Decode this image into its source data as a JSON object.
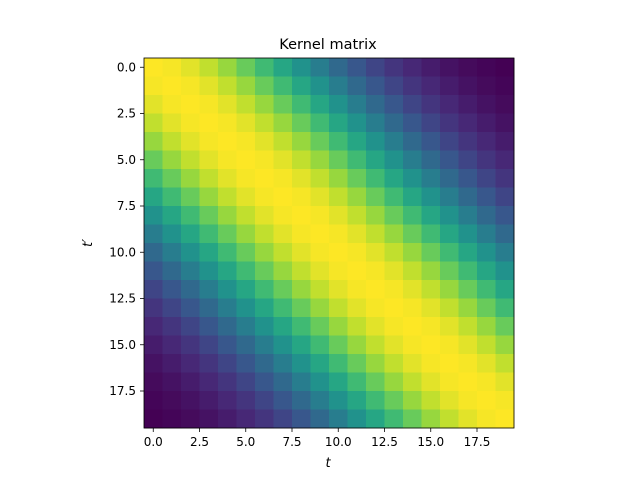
{
  "chart_data": {
    "type": "heatmap",
    "title": "Kernel matrix",
    "xlabel": "t",
    "ylabel": "t′",
    "n": 20,
    "kernel": "squared-exponential",
    "length_scale": 7,
    "colormap": "viridis",
    "x_ticks": [
      0,
      2.5,
      5,
      7.5,
      10,
      12.5,
      15,
      17.5
    ],
    "x_tick_labels": [
      "0.0",
      "2.5",
      "5.0",
      "7.5",
      "10.0",
      "12.5",
      "15.0",
      "17.5"
    ],
    "y_ticks": [
      0,
      2.5,
      5,
      7.5,
      10,
      12.5,
      15,
      17.5
    ],
    "y_tick_labels": [
      "0.0",
      "2.5",
      "5.0",
      "7.5",
      "10.0",
      "12.5",
      "15.0",
      "17.5"
    ],
    "xlim": [
      -0.5,
      19.5
    ],
    "ylim": [
      19.5,
      -0.5
    ],
    "values": [
      [
        1.0,
        0.99,
        0.96,
        0.912,
        0.849,
        0.775,
        0.692,
        0.606,
        0.521,
        0.438,
        0.36,
        0.291,
        0.23,
        0.178,
        0.135,
        0.101,
        0.073,
        0.052,
        0.037,
        0.025
      ],
      [
        0.99,
        1.0,
        0.99,
        0.96,
        0.912,
        0.849,
        0.775,
        0.692,
        0.606,
        0.521,
        0.438,
        0.36,
        0.291,
        0.23,
        0.178,
        0.135,
        0.101,
        0.073,
        0.052,
        0.037
      ],
      [
        0.96,
        0.99,
        1.0,
        0.99,
        0.96,
        0.912,
        0.849,
        0.775,
        0.692,
        0.606,
        0.521,
        0.438,
        0.36,
        0.291,
        0.23,
        0.178,
        0.135,
        0.101,
        0.073,
        0.052
      ],
      [
        0.912,
        0.96,
        0.99,
        1.0,
        0.99,
        0.96,
        0.912,
        0.849,
        0.775,
        0.692,
        0.606,
        0.521,
        0.438,
        0.36,
        0.291,
        0.23,
        0.178,
        0.135,
        0.101,
        0.073
      ],
      [
        0.849,
        0.912,
        0.96,
        0.99,
        1.0,
        0.99,
        0.96,
        0.912,
        0.849,
        0.775,
        0.692,
        0.606,
        0.521,
        0.438,
        0.36,
        0.291,
        0.23,
        0.178,
        0.135,
        0.101
      ],
      [
        0.775,
        0.849,
        0.912,
        0.96,
        0.99,
        1.0,
        0.99,
        0.96,
        0.912,
        0.849,
        0.775,
        0.692,
        0.606,
        0.521,
        0.438,
        0.36,
        0.291,
        0.23,
        0.178,
        0.135
      ],
      [
        0.692,
        0.775,
        0.849,
        0.912,
        0.96,
        0.99,
        1.0,
        0.99,
        0.96,
        0.912,
        0.849,
        0.775,
        0.692,
        0.606,
        0.521,
        0.438,
        0.36,
        0.291,
        0.23,
        0.178
      ],
      [
        0.606,
        0.692,
        0.775,
        0.849,
        0.912,
        0.96,
        0.99,
        1.0,
        0.99,
        0.96,
        0.912,
        0.849,
        0.775,
        0.692,
        0.606,
        0.521,
        0.438,
        0.36,
        0.291,
        0.23
      ],
      [
        0.521,
        0.606,
        0.692,
        0.775,
        0.849,
        0.912,
        0.96,
        0.99,
        1.0,
        0.99,
        0.96,
        0.912,
        0.849,
        0.775,
        0.692,
        0.606,
        0.521,
        0.438,
        0.36,
        0.291
      ],
      [
        0.438,
        0.521,
        0.606,
        0.692,
        0.775,
        0.849,
        0.912,
        0.96,
        0.99,
        1.0,
        0.99,
        0.96,
        0.912,
        0.849,
        0.775,
        0.692,
        0.606,
        0.521,
        0.438,
        0.36
      ],
      [
        0.36,
        0.438,
        0.521,
        0.606,
        0.692,
        0.775,
        0.849,
        0.912,
        0.96,
        0.99,
        1.0,
        0.99,
        0.96,
        0.912,
        0.849,
        0.775,
        0.692,
        0.606,
        0.521,
        0.438
      ],
      [
        0.291,
        0.36,
        0.438,
        0.521,
        0.606,
        0.692,
        0.775,
        0.849,
        0.912,
        0.96,
        0.99,
        1.0,
        0.99,
        0.96,
        0.912,
        0.849,
        0.775,
        0.692,
        0.606,
        0.521
      ],
      [
        0.23,
        0.291,
        0.36,
        0.438,
        0.521,
        0.606,
        0.692,
        0.775,
        0.849,
        0.912,
        0.96,
        0.99,
        1.0,
        0.99,
        0.96,
        0.912,
        0.849,
        0.775,
        0.692,
        0.606
      ],
      [
        0.178,
        0.23,
        0.291,
        0.36,
        0.438,
        0.521,
        0.606,
        0.692,
        0.775,
        0.849,
        0.912,
        0.96,
        0.99,
        1.0,
        0.99,
        0.96,
        0.912,
        0.849,
        0.775,
        0.692
      ],
      [
        0.135,
        0.178,
        0.23,
        0.291,
        0.36,
        0.438,
        0.521,
        0.606,
        0.692,
        0.775,
        0.849,
        0.912,
        0.96,
        0.99,
        1.0,
        0.99,
        0.96,
        0.912,
        0.849,
        0.775
      ],
      [
        0.101,
        0.135,
        0.178,
        0.23,
        0.291,
        0.36,
        0.438,
        0.521,
        0.606,
        0.692,
        0.775,
        0.849,
        0.912,
        0.96,
        0.99,
        1.0,
        0.99,
        0.96,
        0.912,
        0.849
      ],
      [
        0.073,
        0.101,
        0.135,
        0.178,
        0.23,
        0.291,
        0.36,
        0.438,
        0.521,
        0.606,
        0.692,
        0.775,
        0.849,
        0.912,
        0.96,
        0.99,
        1.0,
        0.99,
        0.96,
        0.912
      ],
      [
        0.052,
        0.073,
        0.101,
        0.135,
        0.178,
        0.23,
        0.291,
        0.36,
        0.438,
        0.521,
        0.606,
        0.692,
        0.775,
        0.849,
        0.912,
        0.96,
        0.99,
        1.0,
        0.99,
        0.96
      ],
      [
        0.037,
        0.052,
        0.073,
        0.101,
        0.135,
        0.178,
        0.23,
        0.291,
        0.36,
        0.438,
        0.521,
        0.606,
        0.692,
        0.775,
        0.849,
        0.912,
        0.96,
        0.99,
        1.0,
        0.99
      ],
      [
        0.025,
        0.037,
        0.052,
        0.073,
        0.101,
        0.135,
        0.178,
        0.23,
        0.291,
        0.36,
        0.438,
        0.521,
        0.606,
        0.692,
        0.775,
        0.849,
        0.912,
        0.96,
        0.99,
        1.0
      ]
    ],
    "grid": false,
    "colorbar": false,
    "legend": "none"
  }
}
